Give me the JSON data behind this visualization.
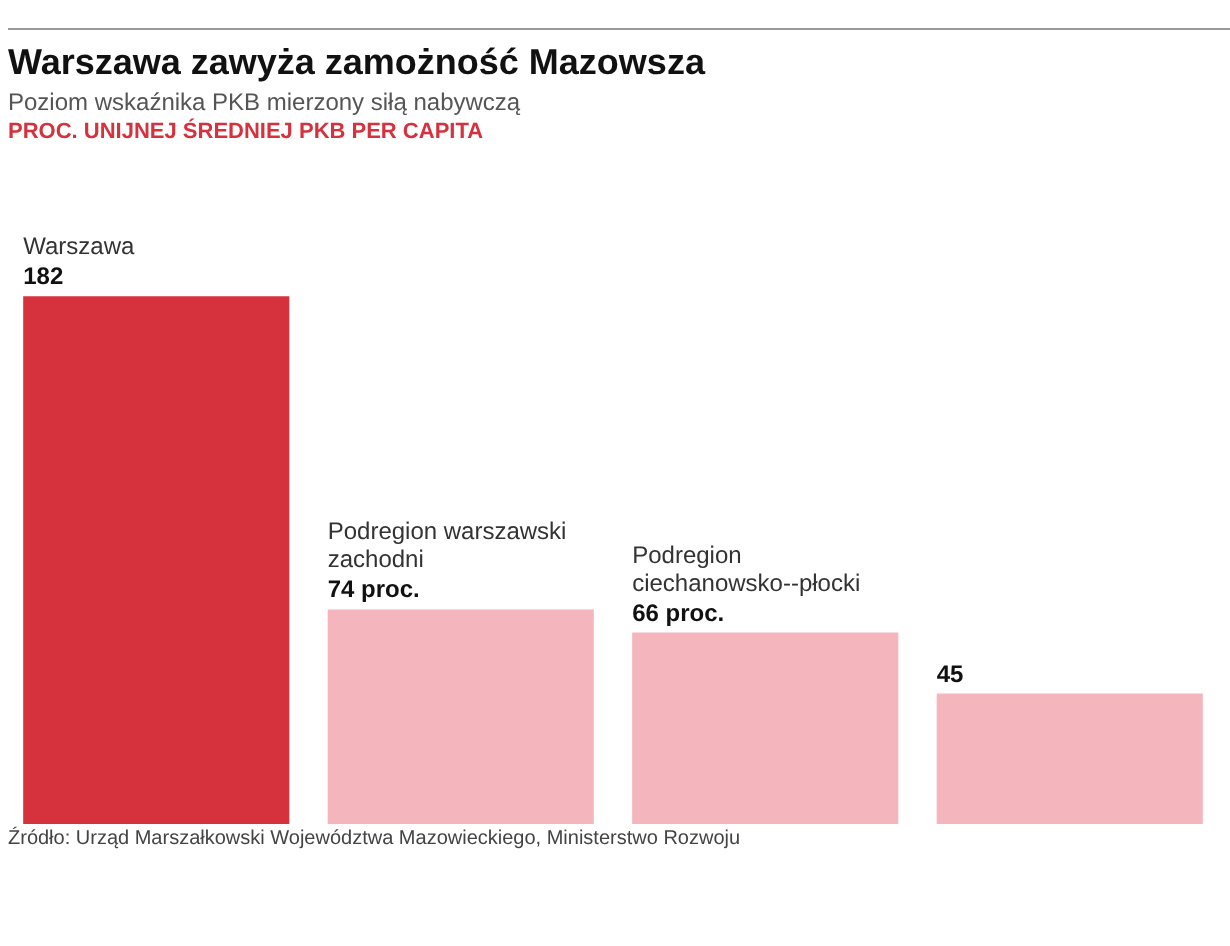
{
  "chart_data": {
    "type": "bar",
    "title": "Warszawa zawyża zamożność Mazowsza",
    "subtitle": "Poziom wskaźnika PKB mierzony siłą nabywczą",
    "categories": [
      "Warszawa",
      "Podregion warszawski zachodni",
      "Podregion ciechanowsko--płocki",
      null
    ],
    "values": [
      182,
      74,
      66,
      45
    ],
    "colors": [
      "#d6323e",
      "#f5b5bd",
      "#f5b5bd",
      "#f5b5bd"
    ],
    "value_labels": [
      "182",
      "74 proc.",
      "66 proc.",
      "45"
    ],
    "annotations": [
      "PROC. UNIJNEJ ŚREDNIEJ PKB PER CAPITA",
      "Źródło: Urząd Marszałkowski Województwa Mazowieckiego, Ministerstwo Rozwoju"
    ],
    "legend": false
  }
}
